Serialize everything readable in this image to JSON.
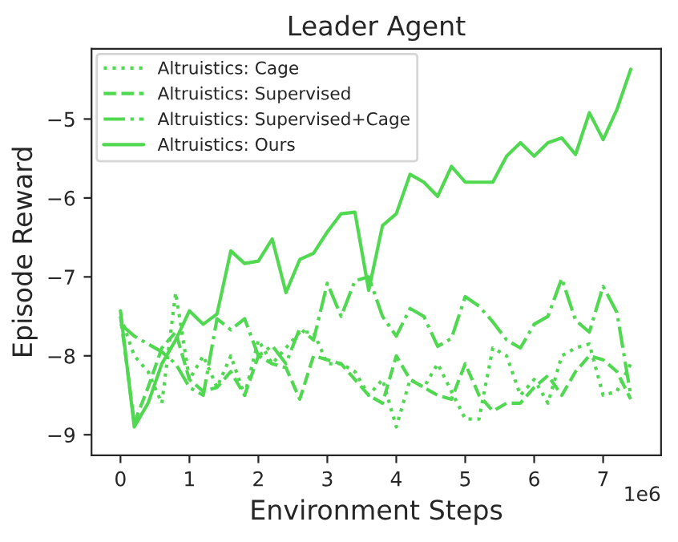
{
  "chart_data": {
    "type": "line",
    "title": "Leader Agent",
    "xlabel": "Environment Steps",
    "ylabel": "Episode Reward",
    "x": [
      0,
      0.2,
      0.4,
      0.6,
      0.8,
      1.0,
      1.2,
      1.4,
      1.6,
      1.8,
      2.0,
      2.2,
      2.4,
      2.6,
      2.8,
      3.0,
      3.2,
      3.4,
      3.6,
      3.8,
      4.0,
      4.2,
      4.4,
      4.6,
      4.8,
      5.0,
      5.2,
      5.4,
      5.6,
      5.8,
      6.0,
      6.2,
      6.4,
      6.6,
      6.8,
      7.0,
      7.2,
      7.4
    ],
    "series": [
      {
        "name": "Altruistics: Cage",
        "color": "#50d850",
        "line_style": "dotted",
        "values": [
          -7.5,
          -8.0,
          -8.2,
          -8.6,
          -7.2,
          -8.3,
          -8.0,
          -8.4,
          -8.0,
          -8.5,
          -7.8,
          -8.1,
          -7.9,
          -7.7,
          -7.7,
          -8.1,
          -8.1,
          -8.2,
          -8.5,
          -8.3,
          -8.9,
          -8.3,
          -8.4,
          -8.1,
          -8.45,
          -8.8,
          -8.8,
          -7.9,
          -8.0,
          -8.5,
          -8.3,
          -8.6,
          -8.0,
          -7.9,
          -7.85,
          -8.5,
          -8.45,
          -8.1
        ]
      },
      {
        "name": "Altruistics: Supervised",
        "color": "#50d850",
        "line_style": "dashed",
        "values": [
          -7.5,
          -8.85,
          -8.4,
          -7.9,
          -7.7,
          -8.3,
          -8.45,
          -8.4,
          -8.2,
          -8.5,
          -8.0,
          -8.1,
          -8.15,
          -8.55,
          -8.0,
          -8.05,
          -8.1,
          -8.3,
          -8.5,
          -8.6,
          -8.0,
          -8.3,
          -8.4,
          -8.5,
          -8.55,
          -8.1,
          -8.5,
          -8.7,
          -8.6,
          -8.6,
          -8.4,
          -8.25,
          -8.5,
          -8.2,
          -8.0,
          -8.05,
          -8.2,
          -8.55
        ]
      },
      {
        "name": "Altruistics: Supervised+Cage",
        "color": "#50d850",
        "line_style": "dashdot",
        "values": [
          -7.6,
          -7.75,
          -7.85,
          -7.95,
          -8.1,
          -8.4,
          -8.5,
          -7.53,
          -7.67,
          -7.53,
          -8.0,
          -7.87,
          -8.1,
          -7.65,
          -7.8,
          -7.08,
          -7.5,
          -7.05,
          -7.0,
          -7.5,
          -7.75,
          -7.4,
          -7.5,
          -7.88,
          -7.78,
          -7.25,
          -7.37,
          -7.57,
          -7.8,
          -7.9,
          -7.6,
          -7.5,
          -7.02,
          -7.55,
          -7.7,
          -7.12,
          -7.45,
          -8.5
        ]
      },
      {
        "name": "Altruistics: Ours",
        "color": "#50d850",
        "line_style": "solid",
        "values": [
          -7.43,
          -8.9,
          -8.6,
          -8.1,
          -7.8,
          -7.43,
          -7.6,
          -7.47,
          -6.67,
          -6.83,
          -6.8,
          -6.52,
          -7.2,
          -6.78,
          -6.7,
          -6.43,
          -6.2,
          -6.18,
          -7.17,
          -6.35,
          -6.2,
          -5.7,
          -5.8,
          -5.98,
          -5.6,
          -5.8,
          -5.8,
          -5.8,
          -5.47,
          -5.3,
          -5.47,
          -5.3,
          -5.24,
          -5.45,
          -4.92,
          -5.26,
          -4.88,
          -4.37
        ]
      }
    ],
    "xlim": [
      -0.42,
      7.84
    ],
    "ylim": [
      -9.26,
      -4.11
    ],
    "xticks": [
      0,
      1,
      2,
      3,
      4,
      5,
      6,
      7
    ],
    "yticks": [
      {
        "value": -9,
        "label": "−9"
      },
      {
        "value": -8,
        "label": "−8"
      },
      {
        "value": -7,
        "label": "−7"
      },
      {
        "value": -6,
        "label": "−6"
      },
      {
        "value": -5,
        "label": "−5"
      }
    ],
    "annotations": [
      "1e6"
    ],
    "legend": "top left",
    "grid": false
  }
}
